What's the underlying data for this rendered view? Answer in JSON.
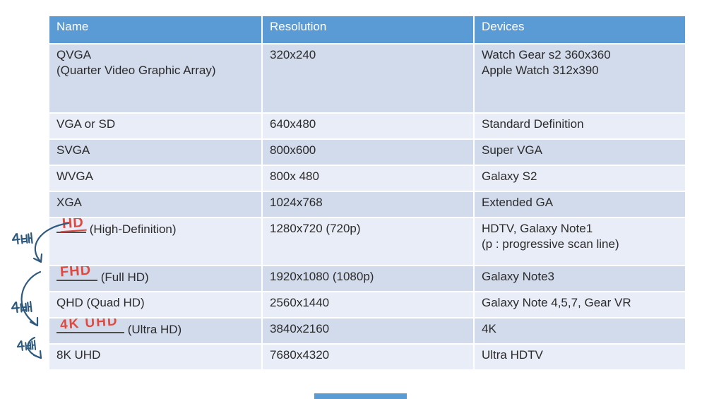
{
  "colors": {
    "header_bg": "#5B9BD5",
    "header_text": "#FFFFFF",
    "row_dark": "#D2DBEC",
    "row_light": "#E9EDF7",
    "ink": "#2B2B2B",
    "red": "#E0493F",
    "navy": "#2E5A7E",
    "blank_line": "#4D4D4D"
  },
  "table": {
    "headers": [
      {
        "label": "Name"
      },
      {
        "label": "Resolution"
      },
      {
        "label": "Devices"
      }
    ],
    "rows": [
      {
        "name_lines": [
          "QVGA",
          "(Quarter Video Graphic Array)"
        ],
        "resolution": "320x240",
        "device_lines": [
          "Watch Gear s2 360x360",
          "Apple Watch 312x390"
        ],
        "shade": "dark"
      },
      {
        "name_lines": [
          "VGA or SD"
        ],
        "resolution": "640x480",
        "device_lines": [
          "Standard Definition"
        ],
        "shade": "light"
      },
      {
        "name_lines": [
          "SVGA"
        ],
        "resolution": "800x600",
        "device_lines": [
          "Super VGA"
        ],
        "shade": "dark"
      },
      {
        "name_lines": [
          "WVGA"
        ],
        "resolution": "800x 480",
        "device_lines": [
          "Galaxy S2"
        ],
        "shade": "light"
      },
      {
        "name_lines": [
          "XGA"
        ],
        "resolution": "1024x768",
        "device_lines": [
          "Extended GA"
        ],
        "shade": "dark"
      },
      {
        "handwritten": "HD",
        "hw_underline": true,
        "blank_width": 42,
        "name_lines": [
          "(High-Definition)"
        ],
        "resolution": "1280x720 (720p)",
        "device_lines": [
          "HDTV, Galaxy Note1",
          "(p : progressive scan line)"
        ],
        "shade": "light"
      },
      {
        "handwritten": "FHD",
        "blank_width": 58,
        "name_lines": [
          "(Full HD)"
        ],
        "resolution": "1920x1080 (1080p)",
        "device_lines": [
          "Galaxy Note3"
        ],
        "shade": "dark"
      },
      {
        "name_lines": [
          "QHD (Quad HD)"
        ],
        "resolution": "2560x1440",
        "device_lines": [
          "Galaxy Note 4,5,7, Gear VR"
        ],
        "shade": "light"
      },
      {
        "handwritten": "4K UHD",
        "hw_wide": true,
        "blank_width": 96,
        "name_lines": [
          "(Ultra HD)"
        ],
        "resolution": "3840x2160",
        "device_lines": [
          "4K"
        ],
        "shade": "dark"
      },
      {
        "name_lines": [
          "8K UHD"
        ],
        "resolution": "7680x4320",
        "device_lines": [
          "Ultra HDTV"
        ],
        "shade": "light"
      }
    ]
  },
  "annotations": {
    "multiplier_labels": [
      {
        "text": "4배"
      },
      {
        "text": "4배"
      },
      {
        "text": "4배"
      }
    ]
  }
}
